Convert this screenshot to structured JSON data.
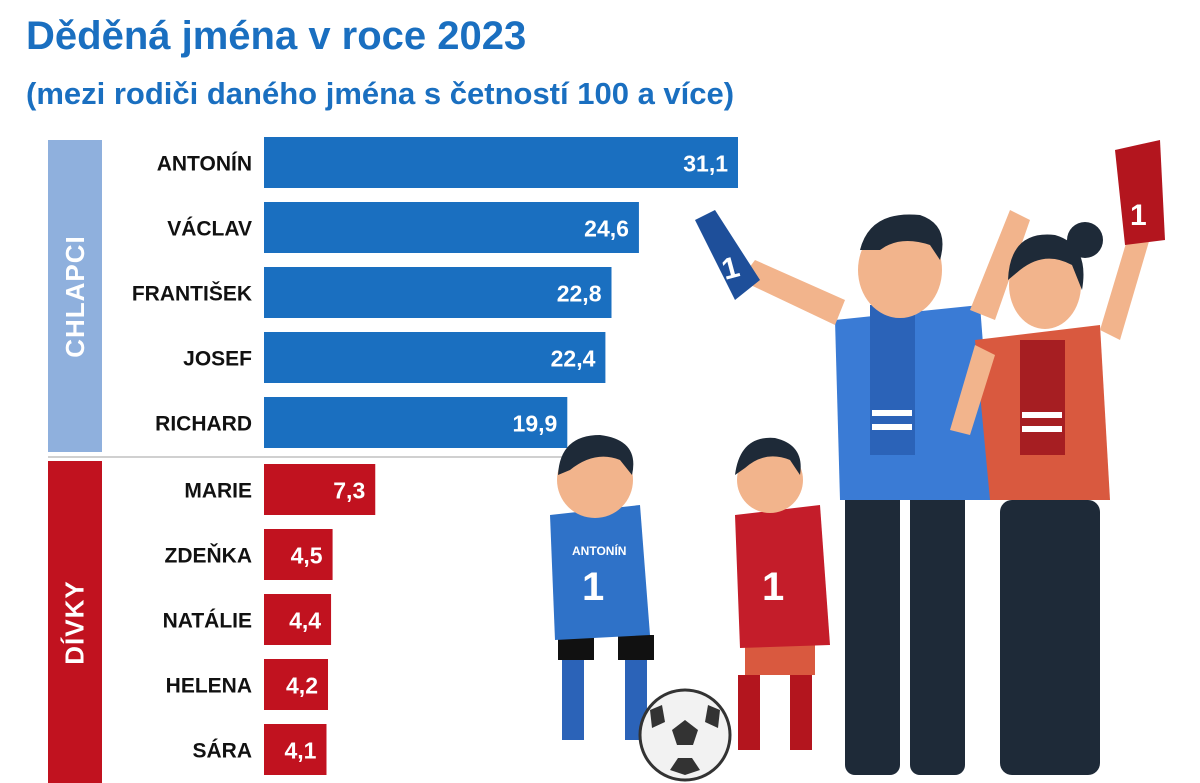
{
  "header": {
    "title": "Děděná jména v roce 2023",
    "subtitle": "(mezi rodiči daného jména s četností 100 a více)"
  },
  "groups": {
    "boys_label": "CHLAPCI",
    "girls_label": "DÍVKY"
  },
  "colors": {
    "title": "#1a6fc0",
    "boys_bar": "#1a6fc0",
    "girls_bar": "#c1121f",
    "boys_band": "#8fb0dd",
    "girls_band": "#c1121f"
  },
  "illustration": {
    "shirt_text": "ANTONÍN",
    "shirt_number": "1"
  },
  "chart_data": {
    "type": "bar",
    "orientation": "horizontal",
    "title": "Děděná jména v roce 2023",
    "subtitle": "(mezi rodiči daného jména s četností 100 a více)",
    "categories": [
      "ANTONÍN",
      "VÁCLAV",
      "FRANTIŠEK",
      "JOSEF",
      "RICHARD",
      "MARIE",
      "ZDEŇKA",
      "NATÁLIE",
      "HELENA",
      "SÁRA"
    ],
    "values": [
      31.1,
      24.6,
      22.8,
      22.4,
      19.9,
      7.3,
      4.5,
      4.4,
      4.2,
      4.1
    ],
    "value_labels": [
      "31,1",
      "24,6",
      "22,8",
      "22,4",
      "19,9",
      "7,3",
      "4,5",
      "4,4",
      "4,2",
      "4,1"
    ],
    "groups": [
      "CHLAPCI",
      "CHLAPCI",
      "CHLAPCI",
      "CHLAPCI",
      "CHLAPCI",
      "DÍVKY",
      "DÍVKY",
      "DÍVKY",
      "DÍVKY",
      "DÍVKY"
    ],
    "xlim": [
      0,
      31.1
    ],
    "grid": false,
    "legend": "none"
  }
}
